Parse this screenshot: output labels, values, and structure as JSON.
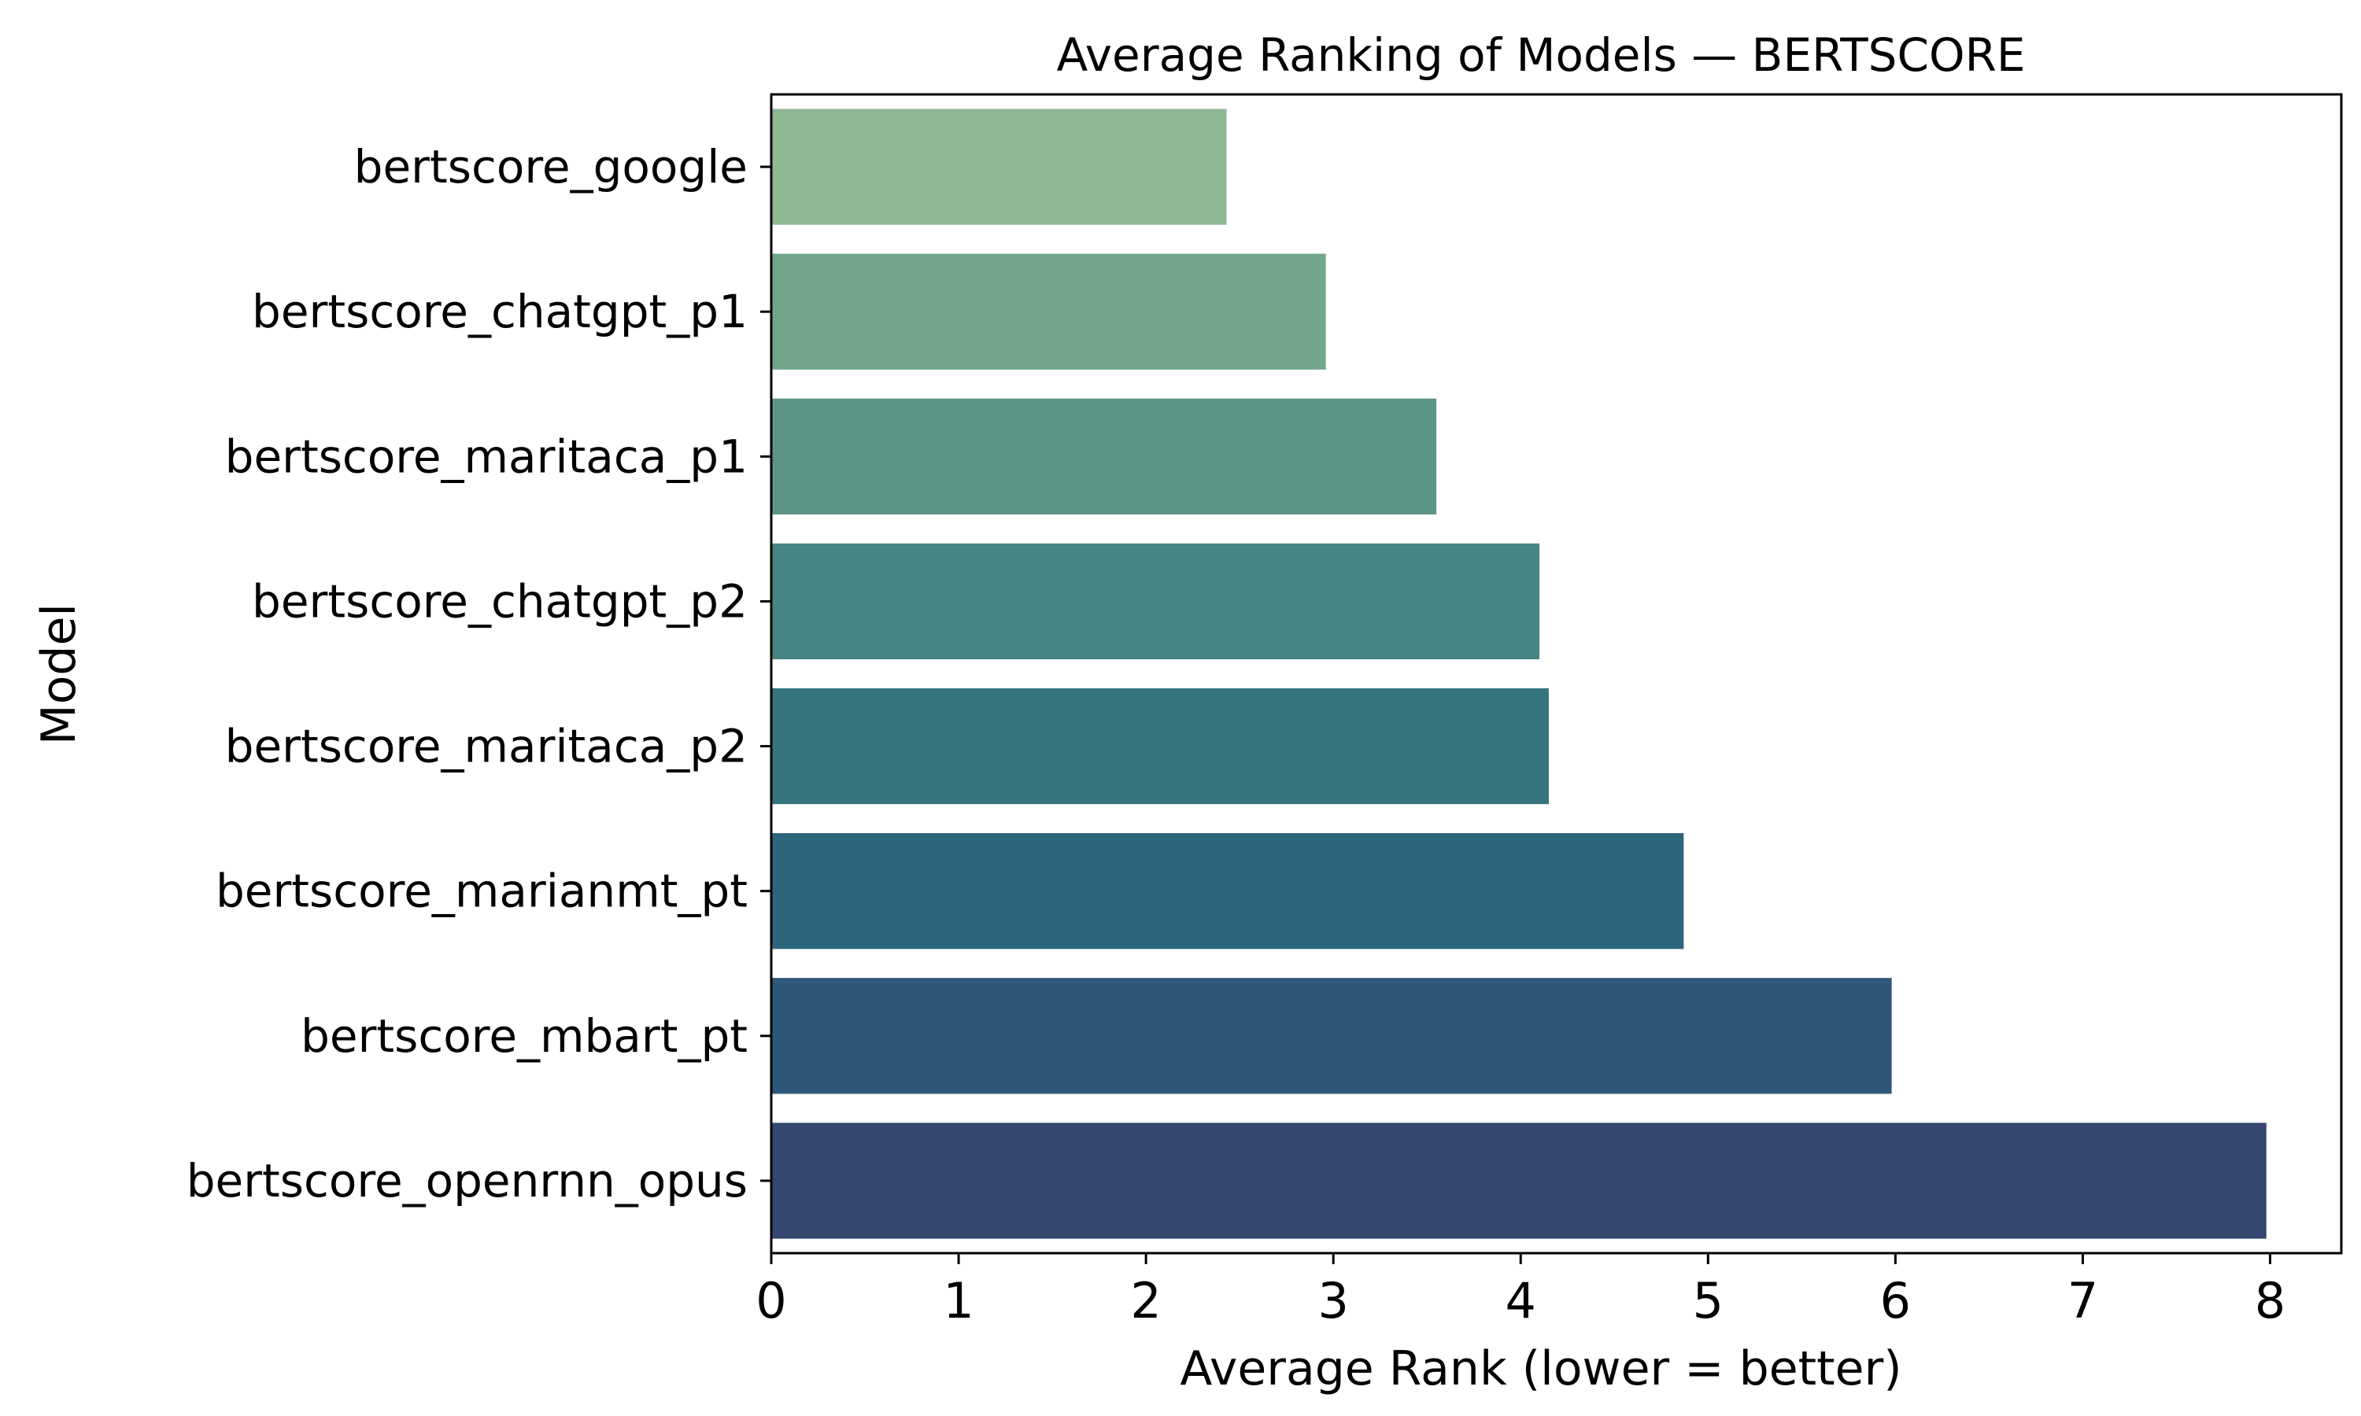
{
  "chart_data": {
    "type": "bar",
    "orientation": "horizontal",
    "title": "Average Ranking of Models — BERTSCORE",
    "xlabel": "Average Rank (lower = better)",
    "ylabel": "Model",
    "xlim": [
      0,
      8.38
    ],
    "xticks": [
      0,
      1,
      2,
      3,
      4,
      5,
      6,
      7,
      8
    ],
    "grid": false,
    "categories": [
      "bertscore_google",
      "bertscore_chatgpt_p1",
      "bertscore_maritaca_p1",
      "bertscore_chatgpt_p2",
      "bertscore_maritaca_p2",
      "bertscore_marianmt_pt",
      "bertscore_mbart_pt",
      "bertscore_openrnn_opus"
    ],
    "values": [
      2.43,
      2.96,
      3.55,
      4.1,
      4.15,
      4.87,
      5.98,
      7.98
    ],
    "colors": [
      "#8fb894",
      "#72a78c",
      "#5c9488",
      "#478584",
      "#37757e",
      "#2d667c",
      "#2e5779",
      "#354770"
    ]
  }
}
